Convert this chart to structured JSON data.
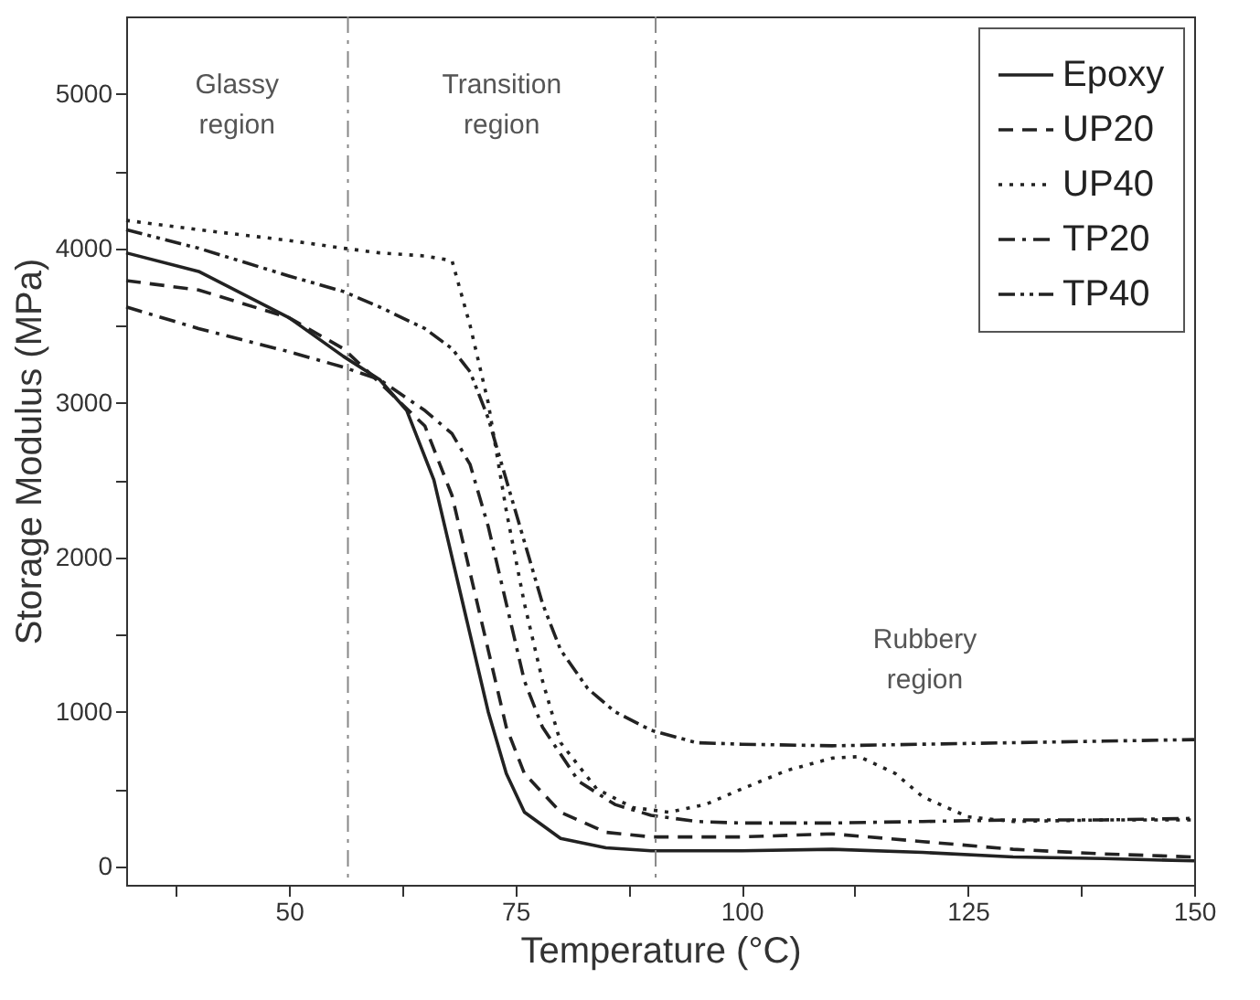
{
  "chart_data": {
    "type": "line",
    "xlabel": "Temperature (°C)",
    "ylabel": "Storage Modulus (MPa)",
    "xlim": [
      32,
      150
    ],
    "ylim": [
      -120,
      5500
    ],
    "xticks": [
      {
        "value": 37.5,
        "label": null
      },
      50,
      {
        "value": 62.5,
        "label": null
      },
      75,
      {
        "value": 87.5,
        "label": null
      },
      100,
      {
        "value": 112.5,
        "label": null
      },
      125,
      {
        "value": 137.5,
        "label": null
      },
      150
    ],
    "yticks": [
      0,
      {
        "value": 500,
        "label": null
      },
      1000,
      {
        "value": 1500,
        "label": null
      },
      2000,
      {
        "value": 2500,
        "label": null
      },
      3000,
      {
        "value": 3500,
        "label": null
      },
      4000,
      {
        "value": 4500,
        "label": null
      },
      5000
    ],
    "grid": false,
    "legend": "top right",
    "marker": "none",
    "series": [
      {
        "name": "Epoxy",
        "color": "#222222",
        "line_style": "solid",
        "x": [
          32,
          40,
          50,
          56,
          60,
          63,
          66,
          68,
          70,
          72,
          74,
          76,
          80,
          85,
          90,
          100,
          110,
          120,
          130,
          140,
          150
        ],
        "values": [
          3970,
          3850,
          3550,
          3300,
          3150,
          2950,
          2500,
          2000,
          1500,
          1000,
          600,
          350,
          180,
          120,
          100,
          100,
          110,
          90,
          60,
          50,
          35
        ]
      },
      {
        "name": "UP20",
        "color": "#222222",
        "line_style": "dashed",
        "x": [
          32,
          40,
          50,
          56,
          60,
          65,
          68,
          70,
          72,
          74,
          76,
          80,
          85,
          90,
          100,
          110,
          120,
          130,
          140,
          150
        ],
        "values": [
          3790,
          3730,
          3550,
          3350,
          3130,
          2850,
          2400,
          1900,
          1400,
          900,
          600,
          350,
          220,
          190,
          190,
          210,
          160,
          110,
          80,
          60
        ]
      },
      {
        "name": "UP40",
        "color": "#222222",
        "line_style": "dotted",
        "x": [
          32,
          40,
          50,
          56,
          60,
          65,
          68,
          70,
          72,
          74,
          76,
          78,
          80,
          84,
          88,
          92,
          96,
          100,
          105,
          110,
          113,
          117,
          120,
          125,
          130,
          140,
          150
        ],
        "values": [
          4180,
          4120,
          4050,
          4000,
          3970,
          3950,
          3920,
          3500,
          3000,
          2300,
          1700,
          1200,
          800,
          500,
          380,
          350,
          400,
          500,
          620,
          700,
          710,
          600,
          450,
          320,
          290,
          300,
          300
        ]
      },
      {
        "name": "TP20",
        "color": "#222222",
        "line_style": "dashdot",
        "x": [
          32,
          40,
          50,
          56,
          60,
          65,
          68,
          70,
          72,
          74,
          76,
          78,
          82,
          86,
          90,
          95,
          100,
          110,
          120,
          130,
          140,
          150
        ],
        "values": [
          3620,
          3480,
          3330,
          3230,
          3150,
          2950,
          2800,
          2600,
          2200,
          1700,
          1200,
          900,
          550,
          400,
          330,
          290,
          280,
          280,
          290,
          300,
          300,
          310
        ]
      },
      {
        "name": "TP40",
        "color": "#222222",
        "line_style": "dashdotdot",
        "x": [
          32,
          40,
          50,
          56,
          60,
          65,
          68,
          70,
          72,
          74,
          76,
          78,
          80,
          83,
          86,
          90,
          95,
          100,
          110,
          120,
          130,
          140,
          150
        ],
        "values": [
          4120,
          4000,
          3820,
          3720,
          3620,
          3480,
          3350,
          3200,
          2900,
          2500,
          2100,
          1700,
          1400,
          1150,
          1000,
          880,
          800,
          790,
          780,
          790,
          800,
          810,
          820
        ]
      }
    ],
    "ref_lines": [
      {
        "axis": "x",
        "value": 56.5,
        "color": "#888888",
        "line_style": "dashdot"
      },
      {
        "axis": "x",
        "value": 90.5,
        "color": "#888888",
        "line_style": "dashdot"
      }
    ],
    "annotations": [
      "Glassy region",
      "Transition region",
      "Rubbery region"
    ]
  }
}
